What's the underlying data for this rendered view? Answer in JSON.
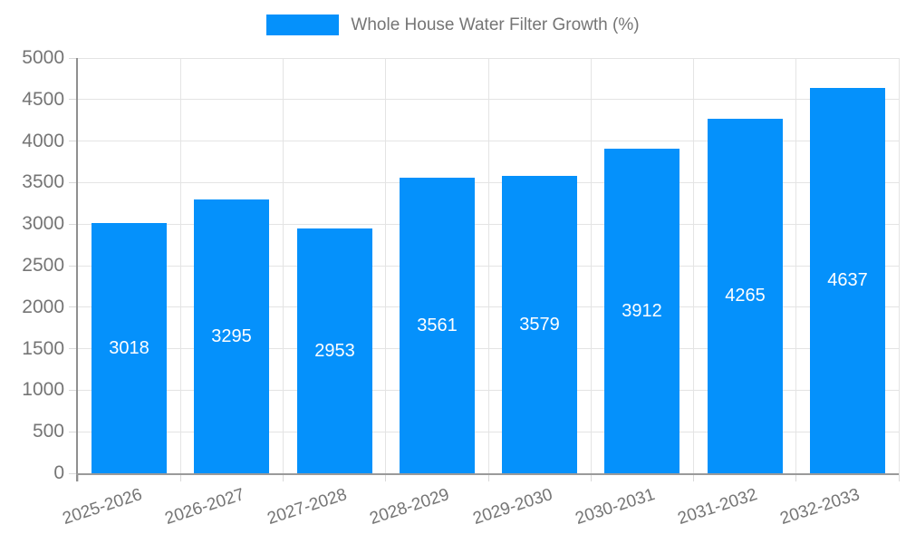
{
  "legend": {
    "label": "Whole House Water Filter Growth (%)"
  },
  "chart_data": {
    "type": "bar",
    "title": "Whole House Water Filter Growth (%)",
    "categories": [
      "2025-2026",
      "2026-2027",
      "2027-2028",
      "2028-2029",
      "2029-2030",
      "2030-2031",
      "2031-2032",
      "2032-2033"
    ],
    "values": [
      3018,
      3295,
      2953,
      3561,
      3579,
      3912,
      4265,
      4637
    ],
    "xlabel": "",
    "ylabel": "",
    "ylim": [
      0,
      5000
    ],
    "yticks": [
      0,
      500,
      1000,
      1500,
      2000,
      2500,
      3000,
      3500,
      4000,
      4500,
      5000
    ],
    "grid": true,
    "legend_position": "top",
    "x_label_rotation_deg": -18,
    "colors": {
      "bar": "#0591fb",
      "value_label": "#ffffff",
      "tick_text": "#757575",
      "axis": "#8f8f8f",
      "grid": "#e4e4e4",
      "background": "#ffffff"
    }
  }
}
